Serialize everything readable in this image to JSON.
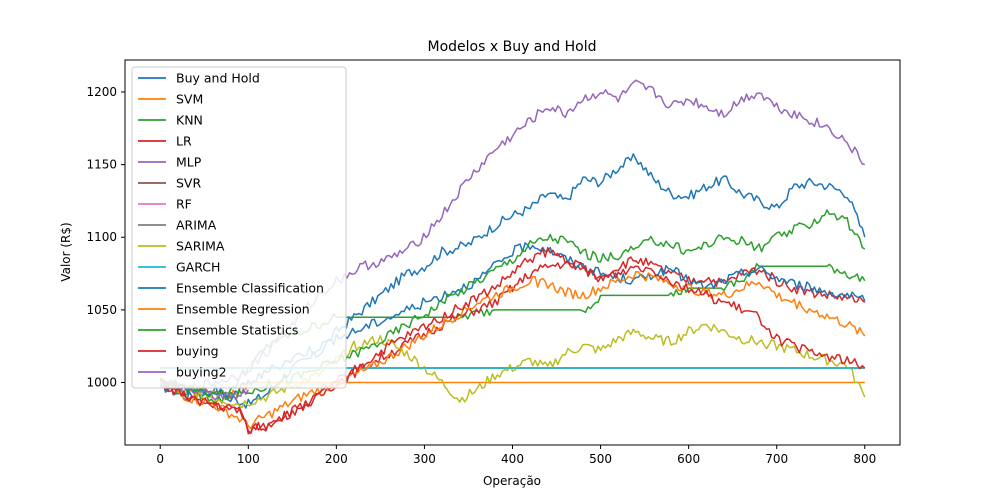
{
  "chart_data": {
    "type": "line",
    "title": "Modelos x Buy and Hold",
    "xlabel": "Operação",
    "ylabel": "Valor (R$)",
    "xlim": [
      -40,
      840
    ],
    "ylim": [
      957,
      1222
    ],
    "xticks": [
      0,
      100,
      200,
      300,
      400,
      500,
      600,
      700,
      800
    ],
    "yticks": [
      1000,
      1050,
      1100,
      1150,
      1200
    ],
    "grid": false,
    "legend": "upper left",
    "series": [
      {
        "name": "Buy and Hold",
        "color": "#1f77b4",
        "x": [
          0,
          30,
          60,
          80,
          100,
          120,
          150,
          180,
          200,
          220,
          250,
          280,
          300,
          320,
          350,
          380,
          400,
          420,
          440,
          460,
          480,
          500,
          520,
          540,
          560,
          580,
          600,
          620,
          640,
          660,
          680,
          700,
          720,
          740,
          760,
          780,
          800
        ],
        "y": [
          998,
          990,
          996,
          990,
          985,
          992,
          1010,
          1020,
          1035,
          1045,
          1060,
          1075,
          1080,
          1090,
          1095,
          1108,
          1115,
          1120,
          1130,
          1125,
          1140,
          1138,
          1148,
          1155,
          1140,
          1130,
          1128,
          1135,
          1140,
          1130,
          1125,
          1120,
          1135,
          1138,
          1135,
          1130,
          1100
        ]
      },
      {
        "name": "SVM",
        "color": "#ff7f0e",
        "x": [
          0,
          20,
          40,
          60,
          80,
          100,
          130,
          160,
          200,
          240,
          300,
          400,
          500,
          600,
          700,
          800
        ],
        "y": [
          1000,
          998,
          996,
          994,
          990,
          1000,
          1000,
          1000,
          1000,
          1000,
          1000,
          1000,
          1000,
          1000,
          1000,
          1000
        ]
      },
      {
        "name": "KNN",
        "color": "#2ca02c",
        "x": [
          0,
          40,
          70,
          100,
          130,
          160,
          200,
          230,
          260,
          300,
          340,
          380,
          400,
          420,
          440,
          480,
          500,
          520,
          540,
          560,
          580,
          600,
          620,
          640,
          660,
          680,
          700,
          720,
          740,
          760,
          780,
          800
        ],
        "y": [
          998,
          992,
          988,
          1010,
          1030,
          1035,
          1045,
          1045,
          1045,
          1045,
          1045,
          1050,
          1050,
          1050,
          1050,
          1050,
          1060,
          1060,
          1060,
          1060,
          1060,
          1065,
          1065,
          1065,
          1070,
          1080,
          1080,
          1080,
          1080,
          1080,
          1075,
          1070
        ]
      },
      {
        "name": "LR",
        "color": "#d62728",
        "x": [
          0,
          30,
          60,
          90,
          100,
          120,
          150,
          180,
          200,
          230,
          260,
          290,
          320,
          350,
          380,
          400,
          420,
          440,
          460,
          480,
          500,
          520,
          540,
          560,
          580,
          600,
          620,
          640,
          660,
          680,
          700,
          720,
          740,
          760,
          780,
          800
        ],
        "y": [
          1000,
          990,
          985,
          980,
          968,
          970,
          980,
          990,
          1000,
          1010,
          1020,
          1030,
          1040,
          1048,
          1055,
          1065,
          1075,
          1080,
          1082,
          1078,
          1072,
          1080,
          1085,
          1080,
          1075,
          1070,
          1072,
          1068,
          1075,
          1078,
          1070,
          1065,
          1062,
          1060,
          1058,
          1055
        ]
      },
      {
        "name": "MLP",
        "color": "#9467bd",
        "x": [
          0,
          30,
          60,
          90,
          120,
          150,
          180,
          200,
          230,
          260,
          290,
          320,
          350,
          380,
          400,
          420,
          440,
          460,
          480,
          500,
          520,
          540,
          560,
          580,
          600,
          620,
          640,
          660,
          680,
          700,
          720,
          740,
          760,
          780,
          800
        ],
        "y": [
          1000,
          995,
          1000,
          1005,
          1020,
          1040,
          1060,
          1070,
          1080,
          1085,
          1095,
          1115,
          1140,
          1160,
          1170,
          1180,
          1190,
          1185,
          1195,
          1200,
          1195,
          1205,
          1200,
          1190,
          1195,
          1190,
          1185,
          1195,
          1200,
          1190,
          1185,
          1180,
          1175,
          1165,
          1150
        ]
      },
      {
        "name": "SVR",
        "color": "#8c564b",
        "x": [
          0,
          50,
          100,
          150,
          200,
          300,
          400,
          500,
          600,
          700,
          800
        ],
        "y": [
          1010,
          1010,
          1010,
          1010,
          1010,
          1010,
          1010,
          1010,
          1010,
          1010,
          1010
        ]
      },
      {
        "name": "RF",
        "color": "#e377c2",
        "x": [
          0,
          50,
          100,
          150,
          200,
          300,
          400,
          500,
          600,
          700,
          800
        ],
        "y": [
          1010,
          1010,
          1010,
          1010,
          1010,
          1010,
          1010,
          1010,
          1010,
          1010,
          1010
        ]
      },
      {
        "name": "ARIMA",
        "color": "#7f7f7f",
        "x": [
          0,
          50,
          100,
          150,
          200,
          300,
          400,
          500,
          600,
          700,
          800
        ],
        "y": [
          1010,
          1010,
          1010,
          1010,
          1010,
          1010,
          1010,
          1010,
          1010,
          1010,
          1010
        ]
      },
      {
        "name": "SARIMA",
        "color": "#bcbd22",
        "x": [
          0,
          30,
          60,
          90,
          120,
          150,
          180,
          200,
          220,
          250,
          280,
          300,
          320,
          340,
          360,
          380,
          400,
          420,
          440,
          460,
          480,
          500,
          520,
          540,
          560,
          580,
          600,
          620,
          640,
          660,
          680,
          700,
          720,
          740,
          760,
          780,
          800
        ],
        "y": [
          1000,
          995,
          990,
          985,
          990,
          998,
          1005,
          1015,
          1025,
          1030,
          1020,
          1010,
          1000,
          988,
          995,
          1005,
          1010,
          1015,
          1010,
          1020,
          1025,
          1022,
          1030,
          1035,
          1030,
          1028,
          1035,
          1040,
          1035,
          1030,
          1028,
          1025,
          1022,
          1018,
          1015,
          1012,
          990
        ]
      },
      {
        "name": "GARCH",
        "color": "#17becf",
        "x": [
          0,
          50,
          100,
          150,
          200,
          300,
          400,
          500,
          600,
          700,
          800
        ],
        "y": [
          1010,
          1010,
          1010,
          1010,
          1010,
          1010,
          1010,
          1010,
          1010,
          1010,
          1010
        ]
      },
      {
        "name": "Ensemble Classification",
        "color": "#1f77b4",
        "x": [
          0,
          40,
          80,
          100,
          130,
          160,
          200,
          240,
          280,
          320,
          360,
          400,
          420,
          440,
          460,
          480,
          500,
          520,
          540,
          560,
          580,
          600,
          620,
          640,
          660,
          680,
          700,
          720,
          740,
          760,
          780,
          800
        ],
        "y": [
          1000,
          995,
          990,
          1000,
          1010,
          1020,
          1030,
          1040,
          1050,
          1060,
          1070,
          1090,
          1095,
          1092,
          1085,
          1080,
          1075,
          1072,
          1070,
          1075,
          1078,
          1070,
          1065,
          1070,
          1075,
          1078,
          1072,
          1068,
          1065,
          1062,
          1060,
          1056
        ]
      },
      {
        "name": "Ensemble Regression",
        "color": "#ff7f0e",
        "x": [
          0,
          30,
          60,
          90,
          100,
          130,
          160,
          200,
          240,
          280,
          320,
          360,
          400,
          420,
          440,
          460,
          480,
          500,
          520,
          540,
          560,
          580,
          600,
          620,
          640,
          660,
          680,
          700,
          720,
          740,
          760,
          780,
          800
        ],
        "y": [
          1000,
          990,
          985,
          975,
          970,
          980,
          990,
          1000,
          1010,
          1025,
          1040,
          1055,
          1065,
          1070,
          1068,
          1062,
          1060,
          1065,
          1070,
          1075,
          1072,
          1068,
          1065,
          1062,
          1060,
          1065,
          1070,
          1060,
          1055,
          1050,
          1045,
          1040,
          1032
        ]
      },
      {
        "name": "Ensemble Statistics",
        "color": "#2ca02c",
        "x": [
          0,
          40,
          80,
          120,
          160,
          200,
          240,
          280,
          320,
          360,
          400,
          420,
          440,
          460,
          480,
          500,
          520,
          540,
          560,
          580,
          600,
          620,
          640,
          660,
          680,
          700,
          720,
          740,
          760,
          780,
          800
        ],
        "y": [
          1000,
          995,
          990,
          998,
          1005,
          1015,
          1025,
          1040,
          1055,
          1070,
          1085,
          1095,
          1100,
          1098,
          1090,
          1085,
          1088,
          1092,
          1098,
          1095,
          1090,
          1095,
          1100,
          1098,
          1092,
          1100,
          1105,
          1110,
          1118,
          1110,
          1092
        ]
      },
      {
        "name": "buying",
        "color": "#d62728",
        "x": [
          0,
          30,
          60,
          90,
          100,
          120,
          150,
          180,
          200,
          230,
          260,
          290,
          320,
          350,
          380,
          400,
          420,
          440,
          460,
          480,
          500,
          520,
          540,
          560,
          580,
          600,
          620,
          640,
          660,
          680,
          700,
          720,
          740,
          760,
          780,
          800
        ],
        "y": [
          1000,
          990,
          985,
          980,
          968,
          970,
          980,
          990,
          1000,
          1012,
          1025,
          1035,
          1045,
          1055,
          1065,
          1075,
          1085,
          1090,
          1085,
          1078,
          1072,
          1075,
          1080,
          1078,
          1070,
          1065,
          1060,
          1055,
          1050,
          1045,
          1030,
          1025,
          1020,
          1018,
          1015,
          1010
        ]
      },
      {
        "name": "buying2",
        "color": "#9467bd",
        "x": [
          0,
          20,
          40,
          60,
          80,
          100
        ],
        "y": [
          1000,
          998,
          995,
          992,
          990,
          995
        ]
      }
    ]
  }
}
